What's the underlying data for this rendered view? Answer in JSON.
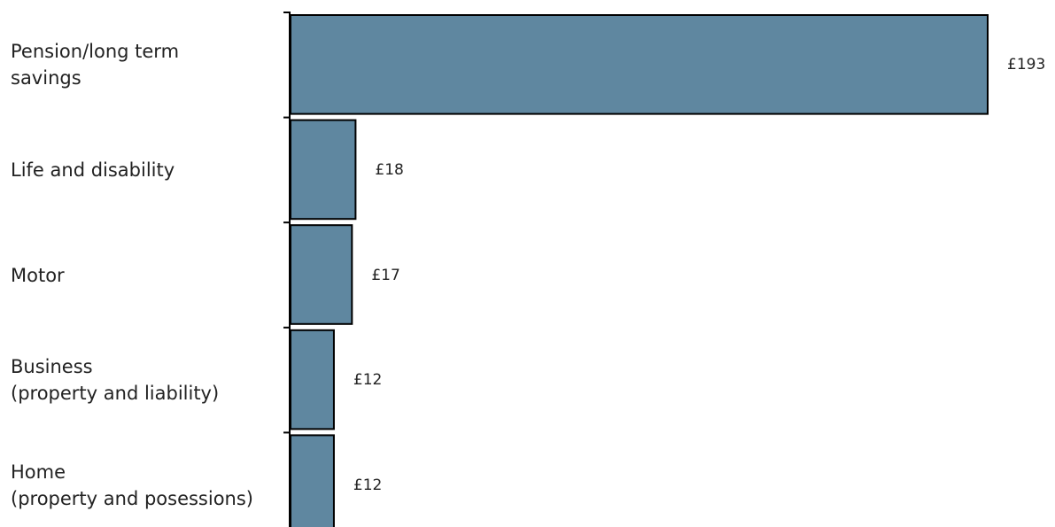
{
  "chart_data": {
    "type": "hbar",
    "categories": [
      "Pension/long term\nsavings",
      "Life and disability",
      "Motor",
      "Business\n(property and liability)",
      "Home\n(property and posessions)"
    ],
    "values": [
      193,
      18,
      17,
      12,
      12
    ],
    "value_labels": [
      "£193",
      "£18",
      "£17",
      "£12",
      "£12"
    ],
    "color": "#5f87a0",
    "xlim": [
      0,
      193
    ]
  }
}
